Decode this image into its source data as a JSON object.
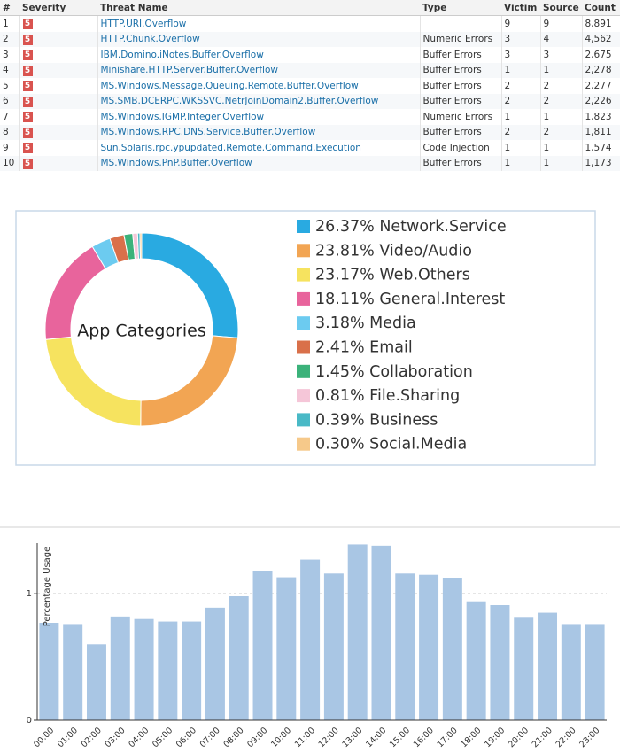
{
  "table": {
    "header": [
      "#",
      "Severity",
      "Threat Name",
      "Type",
      "Victim",
      "Source",
      "Count"
    ],
    "rows": [
      [
        "1",
        "5",
        "HTTP.URI.Overflow",
        null,
        "9",
        "9",
        "8,891"
      ],
      [
        "2",
        "5",
        "HTTP.Chunk.Overflow",
        "Numeric Errors",
        "3",
        "4",
        "4,562"
      ],
      [
        "3",
        "5",
        "IBM.Domino.iNotes.Buffer.Overflow",
        "Buffer Errors",
        "3",
        "3",
        "2,675"
      ],
      [
        "4",
        "5",
        "Minishare.HTTP.Server.Buffer.Overflow",
        "Buffer Errors",
        "1",
        "1",
        "2,278"
      ],
      [
        "5",
        "5",
        "MS.Windows.Message.Queuing.Remote.Buffer.Overflow",
        "Buffer Errors",
        "2",
        "2",
        "2,277"
      ],
      [
        "6",
        "5",
        "MS.SMB.DCERPC.WKSSVC.NetrJoinDomain2.Buffer.Overflow",
        "Buffer Errors",
        "2",
        "2",
        "2,226"
      ],
      [
        "7",
        "5",
        "MS.Windows.IGMP.Integer.Overflow",
        "Numeric Errors",
        "1",
        "1",
        "1,823"
      ],
      [
        "8",
        "5",
        "MS.Windows.RPC.DNS.Service.Buffer.Overflow",
        "Buffer Errors",
        "2",
        "2",
        "1,811"
      ],
      [
        "9",
        "5",
        "Sun.Solaris.rpc.ypupdated.Remote.Command.Execution",
        "Code Injection",
        "1",
        "1",
        "1,574"
      ],
      [
        "10",
        "5",
        "MS.Windows.PnP.Buffer.Overflow",
        "Buffer Errors",
        "1",
        "1",
        "1,173"
      ]
    ]
  },
  "chart_data": [
    {
      "type": "pie",
      "title": "App Categories",
      "categories": [
        "Network.Service",
        "Video/Audio",
        "Web.Others",
        "General.Interest",
        "Media",
        "Email",
        "Collaboration",
        "File.Sharing",
        "Business",
        "Social.Media"
      ],
      "values": [
        26.37,
        23.81,
        23.17,
        18.11,
        3.18,
        2.41,
        1.45,
        0.81,
        0.39,
        0.3
      ],
      "value_labels": [
        "26.37%",
        "23.81%",
        "23.17%",
        "18.11%",
        "3.18%",
        "2.41%",
        "1.45%",
        "0.81%",
        "0.39%",
        "0.30%"
      ],
      "colors": [
        "#29aae1",
        "#f2a553",
        "#f6e35f",
        "#e8649c",
        "#6ccbf0",
        "#d9704a",
        "#3bb27a",
        "#f5c6d8",
        "#49b9c6",
        "#f6c98a"
      ]
    },
    {
      "type": "bar",
      "y_label": "Percentage Usage",
      "categories": [
        "00:00",
        "01:00",
        "02:00",
        "03:00",
        "04:00",
        "05:00",
        "06:00",
        "07:00",
        "08:00",
        "09:00",
        "10:00",
        "11:00",
        "12:00",
        "13:00",
        "14:00",
        "15:00",
        "16:00",
        "17:00",
        "18:00",
        "19:00",
        "20:00",
        "21:00",
        "22:00",
        "23:00"
      ],
      "values": [
        0.77,
        0.76,
        0.6,
        0.82,
        0.8,
        0.78,
        0.78,
        0.89,
        0.98,
        1.18,
        1.13,
        1.27,
        1.16,
        1.39,
        1.38,
        1.16,
        1.15,
        1.12,
        0.94,
        0.91,
        0.81,
        0.85,
        0.76,
        0.76
      ],
      "color": "#a9c6e4",
      "ylim": [
        0,
        1.4
      ],
      "yticks": [
        0,
        1
      ],
      "grid": true
    }
  ]
}
